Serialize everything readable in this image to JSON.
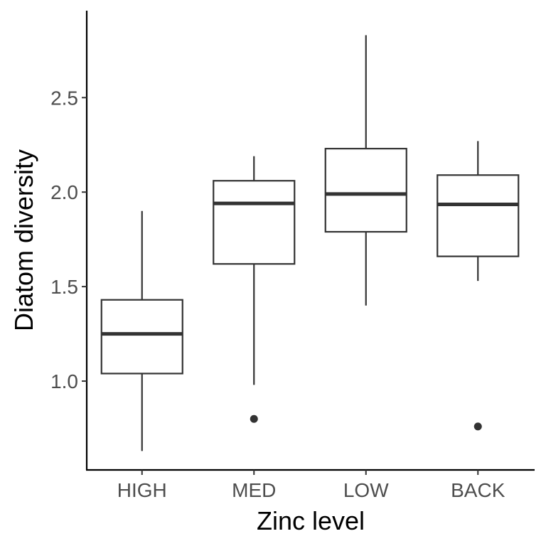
{
  "chart_data": {
    "type": "boxplot",
    "xlabel": "Zinc level",
    "ylabel": "Diatom diversity",
    "ylim": [
      0.53,
      2.96
    ],
    "yticks": [
      1.0,
      1.5,
      2.0,
      2.5
    ],
    "ytick_labels": [
      "1.0",
      "1.5",
      "2.0",
      "2.5"
    ],
    "grid": false,
    "legend": "none",
    "categories": [
      "HIGH",
      "MED",
      "LOW",
      "BACK"
    ],
    "boxes": [
      {
        "category": "HIGH",
        "whisker_low": 0.63,
        "q1": 1.04,
        "median": 1.25,
        "q3": 1.43,
        "whisker_high": 1.9,
        "outliers": []
      },
      {
        "category": "MED",
        "whisker_low": 0.98,
        "q1": 1.62,
        "median": 1.94,
        "q3": 2.06,
        "whisker_high": 2.19,
        "outliers": [
          0.8
        ]
      },
      {
        "category": "LOW",
        "whisker_low": 1.4,
        "q1": 1.79,
        "median": 1.99,
        "q3": 2.23,
        "whisker_high": 2.83,
        "outliers": []
      },
      {
        "category": "BACK",
        "whisker_low": 1.53,
        "q1": 1.66,
        "median": 1.935,
        "q3": 2.09,
        "whisker_high": 2.27,
        "outliers": [
          0.76
        ]
      }
    ]
  }
}
